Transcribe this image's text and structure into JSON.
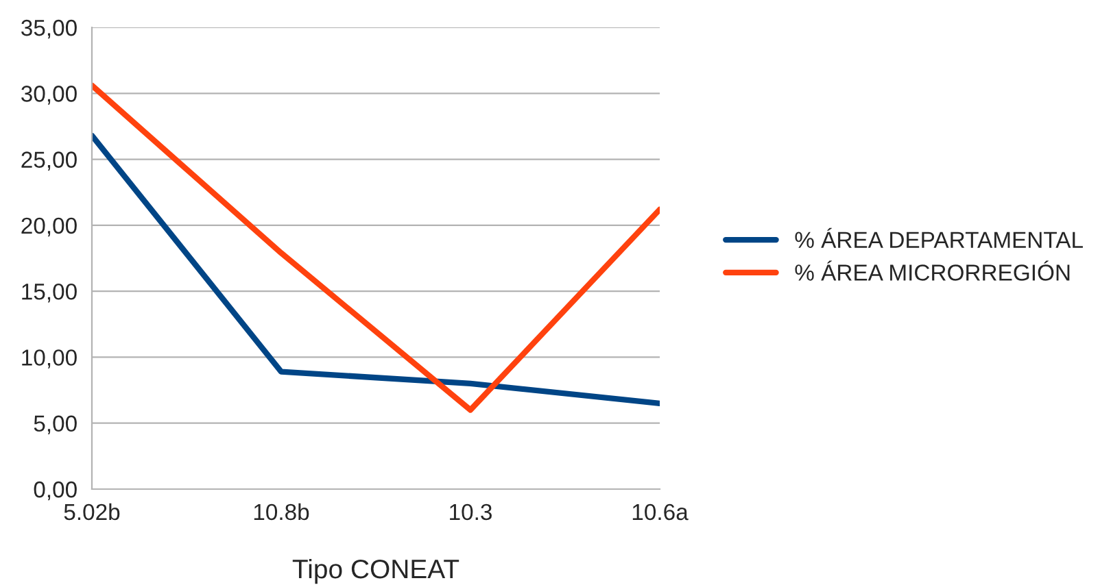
{
  "chart_data": {
    "type": "line",
    "xlabel": "Tipo CONEAT",
    "categories": [
      "5.02b",
      "10.8b",
      "10.3",
      "10.6a"
    ],
    "series": [
      {
        "name": "% ÁREA DEPARTAMENTAL",
        "color": "#004586",
        "values": [
          26.8,
          8.9,
          8.0,
          6.5
        ]
      },
      {
        "name": "% ÁREA MICRORREGIÓN",
        "color": "#ff420e",
        "values": [
          30.6,
          17.9,
          6.0,
          21.2
        ]
      }
    ],
    "ylim": [
      0,
      35
    ],
    "yticks": [
      {
        "value": 0,
        "label": "0,00"
      },
      {
        "value": 5,
        "label": "5,00"
      },
      {
        "value": 10,
        "label": "10,00"
      },
      {
        "value": 15,
        "label": "15,00"
      },
      {
        "value": 20,
        "label": "20,00"
      },
      {
        "value": 25,
        "label": "25,00"
      },
      {
        "value": 30,
        "label": "30,00"
      },
      {
        "value": 35,
        "label": "35,00"
      }
    ],
    "grid": "y",
    "legend": "right",
    "marker": "none",
    "line_style": "solid"
  }
}
